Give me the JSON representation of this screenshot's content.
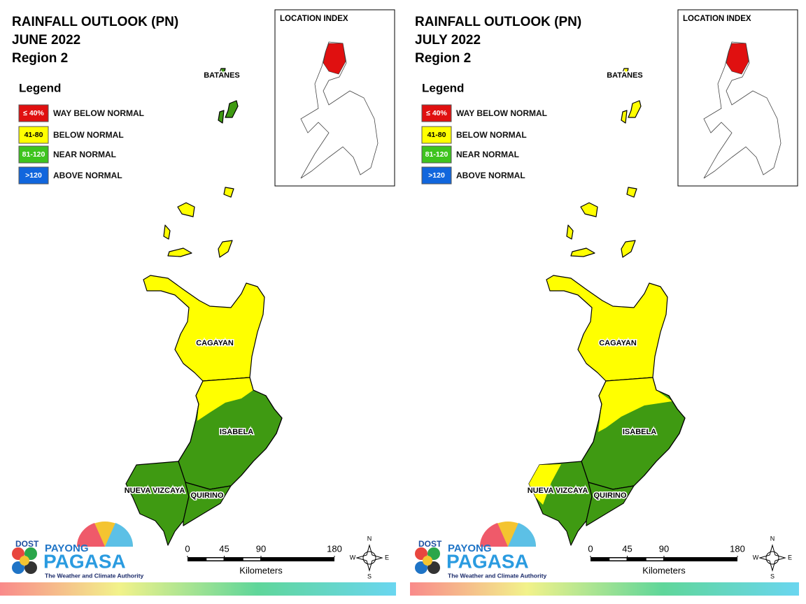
{
  "panels": [
    {
      "title": [
        "RAINFALL OUTLOOK (PN)",
        "JUNE 2022",
        "Region 2"
      ],
      "legend": {
        "title": "Legend",
        "items": [
          {
            "range": "≤ 40%",
            "label": "WAY BELOW NORMAL",
            "color": "#e01010"
          },
          {
            "range": "41-80",
            "label": "BELOW NORMAL",
            "color": "#ffff00"
          },
          {
            "range": "81-120",
            "label": "NEAR NORMAL",
            "color": "#3ec41e"
          },
          {
            "range": ">120",
            "label": "ABOVE NORMAL",
            "color": "#1166dd"
          }
        ]
      },
      "inset_title": "LOCATION INDEX",
      "provinces": [
        "BATANES",
        "CAGAYAN",
        "ISABELA",
        "NUEVA VIZCAYA",
        "QUIRINO"
      ],
      "scale": {
        "ticks": [
          0,
          45,
          90,
          180
        ],
        "unit": "Kilometers"
      },
      "compass": {
        "n": "N",
        "e": "E",
        "s": "S",
        "w": "W"
      },
      "logo": {
        "agency": "DOST",
        "line1": "PAYONG",
        "line2": "PAGASA",
        "tagline": "The Weather and Climate Authority"
      }
    },
    {
      "title": [
        "RAINFALL OUTLOOK (PN)",
        "JULY 2022",
        "Region 2"
      ],
      "legend": {
        "title": "Legend",
        "items": [
          {
            "range": "≤ 40%",
            "label": "WAY BELOW NORMAL",
            "color": "#e01010"
          },
          {
            "range": "41-80",
            "label": "BELOW NORMAL",
            "color": "#ffff00"
          },
          {
            "range": "81-120",
            "label": "NEAR NORMAL",
            "color": "#3ec41e"
          },
          {
            "range": ">120",
            "label": "ABOVE NORMAL",
            "color": "#1166dd"
          }
        ]
      },
      "inset_title": "LOCATION INDEX",
      "provinces": [
        "BATANES",
        "CAGAYAN",
        "ISABELA",
        "NUEVA VIZCAYA",
        "QUIRINO"
      ],
      "scale": {
        "ticks": [
          0,
          45,
          90,
          180
        ],
        "unit": "Kilometers"
      },
      "compass": {
        "n": "N",
        "e": "E",
        "s": "S",
        "w": "W"
      },
      "logo": {
        "agency": "DOST",
        "line1": "PAYONG",
        "line2": "PAGASA",
        "tagline": "The Weather and Climate Authority"
      }
    }
  ]
}
